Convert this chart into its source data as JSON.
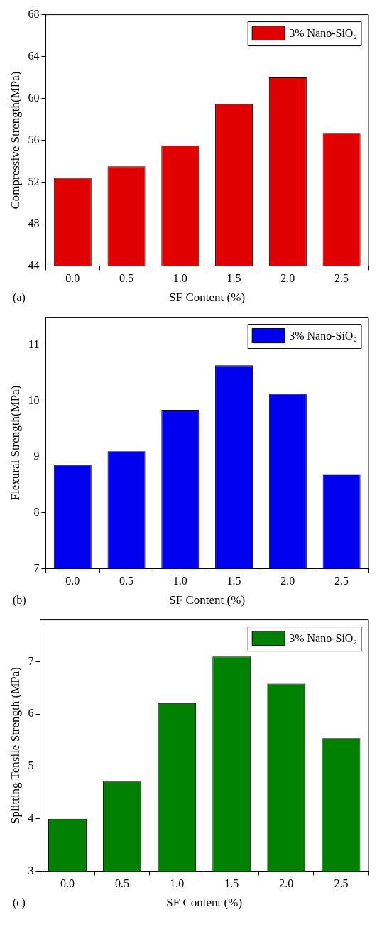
{
  "chart_data": [
    {
      "type": "bar",
      "xlabel": "SF Content (%)",
      "ylabel": "Compressive Strength(MPa)",
      "categories": [
        "0.0",
        "0.5",
        "1.0",
        "1.5",
        "2.0",
        "2.5"
      ],
      "series": [
        {
          "name": "3% Nano-SiO₂",
          "color": "#e00000",
          "values": [
            52.4,
            53.5,
            55.5,
            59.5,
            62.0,
            56.7
          ]
        }
      ],
      "ylim": [
        44,
        68
      ],
      "yticks": [
        44,
        48,
        52,
        56,
        60,
        64,
        68
      ],
      "grid": false,
      "legend": "top right",
      "annotations": [
        "(a)"
      ]
    },
    {
      "type": "bar",
      "xlabel": "SF Content (%)",
      "ylabel": "Flexural Strength(MPa)",
      "categories": [
        "0.0",
        "0.5",
        "1.0",
        "1.5",
        "2.0",
        "2.5"
      ],
      "series": [
        {
          "name": "3% Nano-SiO₂",
          "color": "#0000f0",
          "values": [
            8.86,
            9.1,
            9.84,
            10.64,
            10.13,
            8.69
          ]
        }
      ],
      "ylim": [
        7,
        11.5
      ],
      "yticks": [
        7,
        8,
        9,
        10,
        11
      ],
      "grid": false,
      "legend": "top right",
      "annotations": [
        "(b)"
      ]
    },
    {
      "type": "bar",
      "xlabel": "SF Content (%)",
      "ylabel": "Splitting Tensile Strength (MPa)",
      "categories": [
        "0.0",
        "0.5",
        "1.0",
        "1.5",
        "2.0",
        "2.5"
      ],
      "series": [
        {
          "name": "3% Nano-SiO₂",
          "color": "#008000",
          "values": [
            4.0,
            4.72,
            6.21,
            7.1,
            6.58,
            5.54
          ]
        }
      ],
      "ylim": [
        3,
        7.8
      ],
      "yticks": [
        3,
        4,
        5,
        6,
        7
      ],
      "grid": false,
      "legend": "top right",
      "annotations": [
        "(c)"
      ]
    }
  ]
}
